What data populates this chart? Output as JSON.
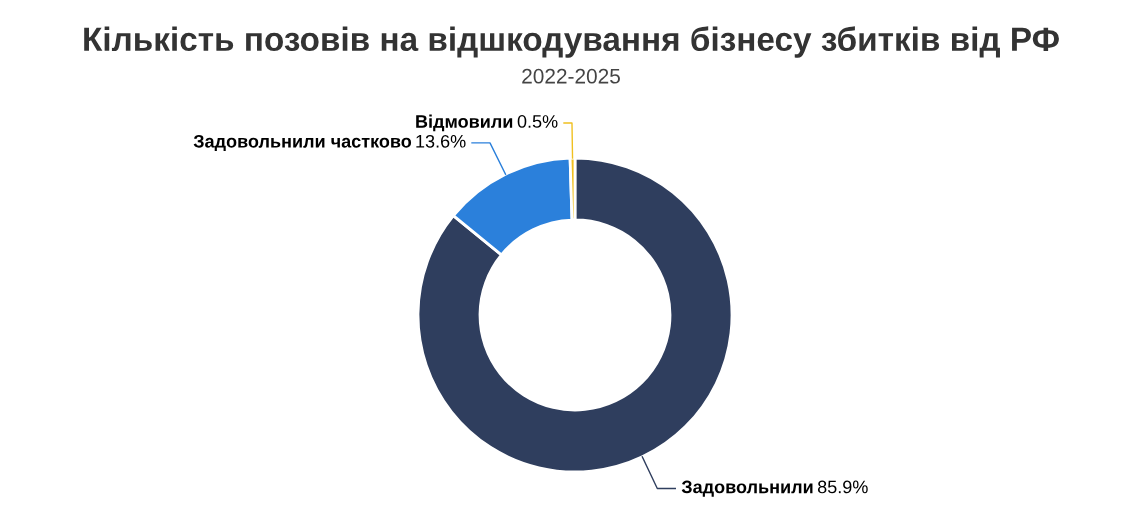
{
  "chart_data": {
    "type": "donut",
    "title": "Кількість позовів на відшкодування бізнесу збитків від РФ",
    "subtitle": "2022-2025",
    "categories": [
      "Задовольнили",
      "Задовольнили частково",
      "Відмовили"
    ],
    "values": [
      85.9,
      13.6,
      0.5
    ],
    "colors": [
      "#2f3e5e",
      "#2b80db",
      "#f0c020"
    ],
    "value_labels": [
      "85.9%",
      "13.6%",
      "0.5%"
    ]
  }
}
